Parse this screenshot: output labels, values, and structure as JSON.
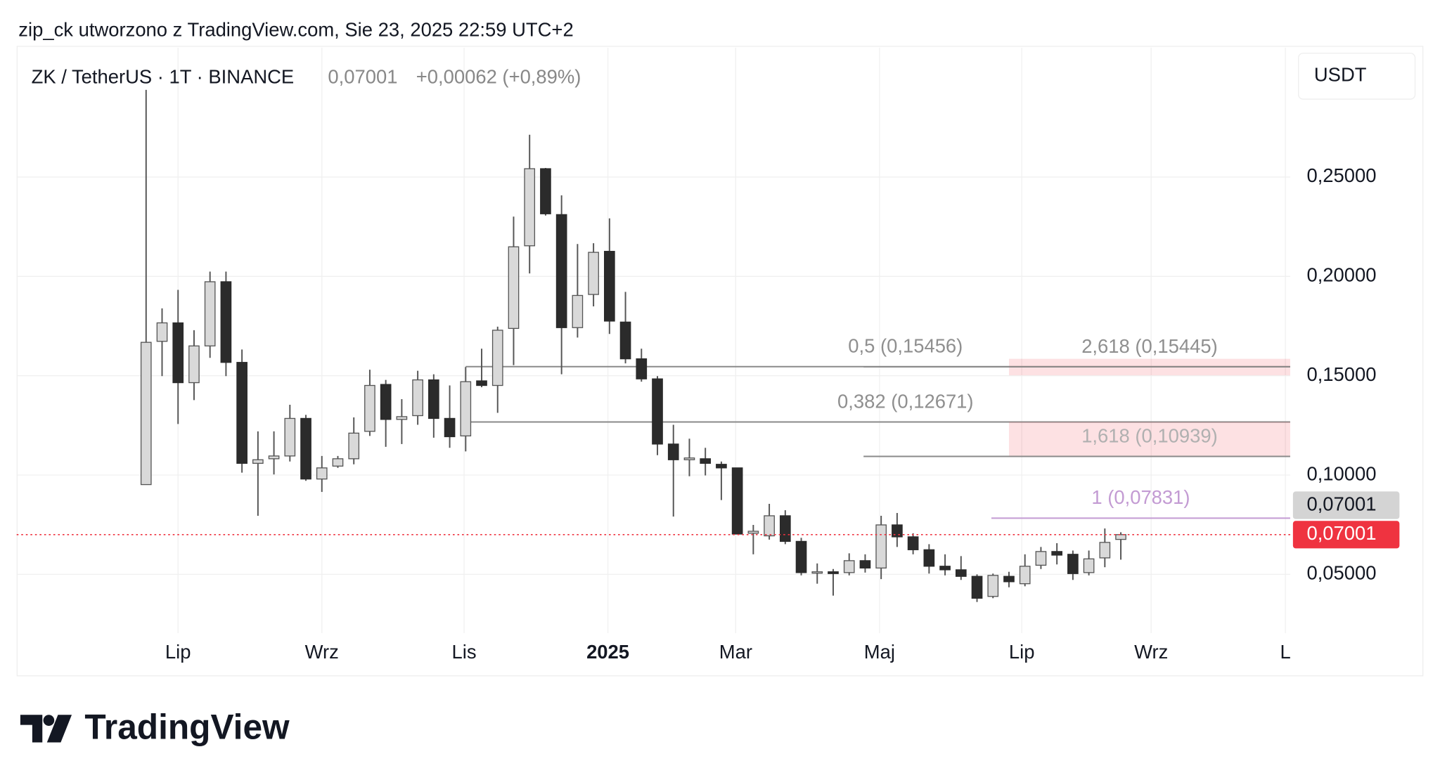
{
  "header": {
    "caption": "zip_ck utworzono z TradingView.com, Sie 23, 2025 22:59 UTC+2",
    "logo": "TradingView"
  },
  "chart_data": {
    "type": "candlestick",
    "symbol": "ZK / TetherUS · 1T · BINANCE",
    "last": "0,07001",
    "change": "+0,00062 (+0,89%)",
    "currency": "USDT",
    "up_color": "#d9d9d9",
    "down_color": "#2b2b2b",
    "open": [
      0.0952,
      0.1673,
      0.1766,
      0.1465,
      0.165,
      0.1973,
      0.1567,
      0.1059,
      0.1082,
      0.1096,
      0.1285,
      0.098,
      0.1045,
      0.1082,
      0.122,
      0.1456,
      0.128,
      0.1299,
      0.1479,
      0.1285,
      0.1197,
      0.1474,
      0.1451,
      0.1738,
      0.2154,
      0.2542,
      0.2311,
      0.1742,
      0.1909,
      0.2126,
      0.177,
      0.1585,
      0.1484,
      0.1156,
      0.1077,
      0.1082,
      0.1054,
      0.1036,
      0.0707,
      0.0694,
      0.0795,
      0.0666,
      0.0509,
      0.0513,
      0.0509,
      0.0569,
      0.0532,
      0.0749,
      0.0689,
      0.0624,
      0.0541,
      0.0523,
      0.049,
      0.0389,
      0.049,
      0.0453,
      0.0546,
      0.0615,
      0.0601,
      0.0509,
      0.0583,
      0.0676
    ],
    "high": [
      0.2939,
      0.1839,
      0.1932,
      0.1729,
      0.2024,
      0.2024,
      0.1632,
      0.122,
      0.122,
      0.1354,
      0.1303,
      0.1096,
      0.1096,
      0.129,
      0.153,
      0.1479,
      0.1382,
      0.1525,
      0.1507,
      0.1451,
      0.1544,
      0.1636,
      0.1747,
      0.2301,
      0.2713,
      0.2546,
      0.2408,
      0.2163,
      0.2167,
      0.2292,
      0.1922,
      0.1636,
      0.1498,
      0.1253,
      0.1183,
      0.1137,
      0.1068,
      0.1036,
      0.0749,
      0.0855,
      0.0823,
      0.0684,
      0.0555,
      0.0527,
      0.0606,
      0.0601,
      0.0795,
      0.0809,
      0.0707,
      0.0652,
      0.0601,
      0.0592,
      0.05,
      0.0504,
      0.0513,
      0.0601,
      0.0638,
      0.0657,
      0.062,
      0.062,
      0.0731,
      0.0712
    ],
    "low": [
      0.0952,
      0.1498,
      0.1257,
      0.1377,
      0.159,
      0.1498,
      0.1012,
      0.0795,
      0.1003,
      0.1068,
      0.0971,
      0.0915,
      0.1036,
      0.1054,
      0.1197,
      0.1142,
      0.1156,
      0.1253,
      0.1188,
      0.1137,
      0.1119,
      0.1442,
      0.1313,
      0.1553,
      0.2015,
      0.2306,
      0.1507,
      0.1692,
      0.1849,
      0.171,
      0.1562,
      0.147,
      0.11,
      0.0791,
      0.0994,
      0.0998,
      0.0874,
      0.0703,
      0.0601,
      0.0675,
      0.0652,
      0.0495,
      0.0453,
      0.0393,
      0.0495,
      0.0509,
      0.0476,
      0.0638,
      0.0601,
      0.0504,
      0.0495,
      0.0472,
      0.0361,
      0.038,
      0.0435,
      0.044,
      0.0527,
      0.055,
      0.0472,
      0.0495,
      0.0536,
      0.0574
    ],
    "close": [
      0.1668,
      0.1766,
      0.1465,
      0.165,
      0.1973,
      0.1567,
      0.1059,
      0.1077,
      0.1096,
      0.1285,
      0.098,
      0.1036,
      0.1082,
      0.1211,
      0.1451,
      0.128,
      0.1294,
      0.1479,
      0.1285,
      0.1193,
      0.147,
      0.1451,
      0.1729,
      0.2149,
      0.2542,
      0.2315,
      0.1742,
      0.1904,
      0.2121,
      0.1775,
      0.1585,
      0.1484,
      0.1156,
      0.1077,
      0.1086,
      0.1059,
      0.1036,
      0.0703,
      0.0717,
      0.0795,
      0.0666,
      0.0509,
      0.0513,
      0.0504,
      0.0569,
      0.0532,
      0.0749,
      0.0689,
      0.0624,
      0.0541,
      0.0523,
      0.049,
      0.038,
      0.0495,
      0.0463,
      0.0541,
      0.0615,
      0.0597,
      0.0504,
      0.0578,
      0.0661,
      0.07001
    ],
    "xlim": [
      -8.1,
      71.6
    ],
    "xticks": [
      {
        "value": 2.0,
        "label": "Lip"
      },
      {
        "value": 11.0,
        "label": "Wrz"
      },
      {
        "value": 19.9,
        "label": "Lis"
      },
      {
        "value": 28.9,
        "label": "2025",
        "bold": true
      },
      {
        "value": 36.9,
        "label": "Mar"
      },
      {
        "value": 45.9,
        "label": "Maj"
      },
      {
        "value": 54.8,
        "label": "Lip"
      },
      {
        "value": 62.9,
        "label": "Wrz"
      },
      {
        "value": 71.3,
        "label": "L"
      }
    ],
    "ylim": [
      0.0204,
      0.3151
    ],
    "yticks": [
      {
        "value": 0.05,
        "label": "0,05000"
      },
      {
        "value": 0.1,
        "label": "0,10000"
      },
      {
        "value": 0.15,
        "label": "0,15000"
      },
      {
        "value": 0.2,
        "label": "0,20000"
      },
      {
        "value": 0.25,
        "label": "0,25000"
      }
    ],
    "grid": true,
    "price_labels": [
      {
        "value": 0.07001,
        "label": "0,07001",
        "color": "#ef3340",
        "text_color": "#ffffff",
        "line": true
      },
      {
        "value": 0.07001,
        "label": "0,07001",
        "color": "#d4d4d4",
        "text_color": "#131722",
        "line": false
      }
    ],
    "fib_lines": [
      {
        "label": "0,5 (0,15456)",
        "value": 0.15456,
        "from": 20.0,
        "color": "#8a8a8a",
        "label_color": "#8f8f8f"
      },
      {
        "label": "0,382 (0,12671)",
        "value": 0.12671,
        "from": 20.0,
        "color": "#8a8a8a",
        "label_color": "#8f8f8f"
      },
      {
        "label": "2,618 (0,15445)",
        "value": 0.15445,
        "from": 44.9,
        "color": "#8a8a8a",
        "label_color": "#8f8f8f",
        "zone": [
          0.1585,
          0.1502
        ],
        "zone_from": 54.0
      },
      {
        "label": "1,618 (0,10939)",
        "value": 0.10939,
        "from": 44.9,
        "color": "#8a8a8a",
        "label_color": "#b0b0b0",
        "zone": [
          0.12671,
          0.10939
        ],
        "zone_from": 54.0
      },
      {
        "label": "1 (0,07831)",
        "value": 0.07831,
        "from": 52.9,
        "color": "#c39bd3",
        "label_color": "#c39bd3"
      }
    ]
  }
}
